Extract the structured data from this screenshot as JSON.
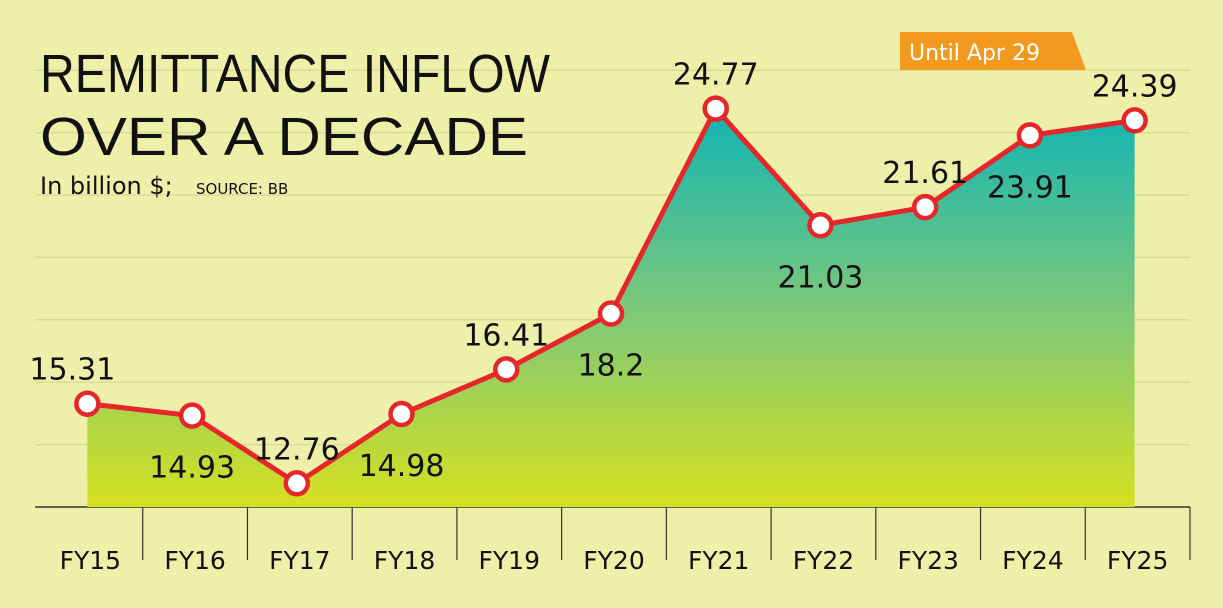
{
  "chart_data": {
    "type": "line",
    "title": "REMITTANCE INFLOW",
    "title_line2": "OVER A DECADE",
    "subtitle": "In billion $;",
    "source": "SOURCE: BB",
    "annotation": "Until Apr 29",
    "categories": [
      "FY15",
      "FY16",
      "FY17",
      "FY18",
      "FY19",
      "FY20",
      "FY21",
      "FY22",
      "FY23",
      "FY24",
      "FY25"
    ],
    "values": [
      15.31,
      14.93,
      12.76,
      14.98,
      16.41,
      18.2,
      24.77,
      21.03,
      21.61,
      23.91,
      24.39
    ],
    "color": "#e5272b",
    "ylim": [
      12,
      28.25
    ],
    "yticks": [
      14,
      16,
      18,
      20,
      22,
      24,
      26
    ],
    "grid": true
  }
}
